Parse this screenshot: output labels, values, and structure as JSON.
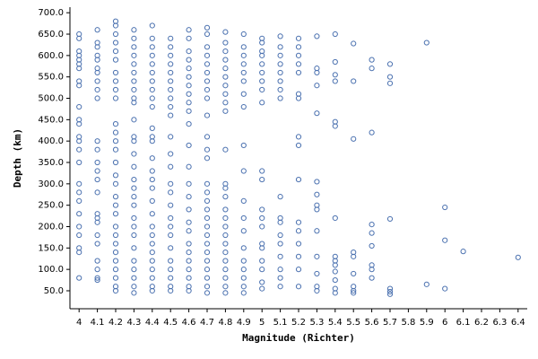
{
  "chart_data": {
    "type": "scatter",
    "x_label": "Magnitude (Richter)",
    "y_label": "Depth (km)",
    "color": "#4c72b0",
    "xlim": [
      3.95,
      6.45
    ],
    "ylim": [
      8,
      713
    ],
    "xticks": [
      4,
      4.1,
      4.2,
      4.3,
      4.4,
      4.5,
      4.6,
      4.7,
      4.8,
      4.9,
      5,
      5.1,
      5.2,
      5.3,
      5.4,
      5.5,
      5.6,
      5.7,
      5.8,
      5.9,
      6,
      6.1,
      6.2,
      6.3,
      6.4
    ],
    "yticks": [
      {
        "value": 50,
        "label": "50.0"
      },
      {
        "value": 100,
        "label": "100.0"
      },
      {
        "value": 150,
        "label": "150.0"
      },
      {
        "value": 200,
        "label": "200.0"
      },
      {
        "value": 250,
        "label": "250.0"
      },
      {
        "value": 300,
        "label": "300.0"
      },
      {
        "value": 350,
        "label": "350.0"
      },
      {
        "value": 400,
        "label": "400.0"
      },
      {
        "value": 450,
        "label": "450.0"
      },
      {
        "value": 500,
        "label": "500.0"
      },
      {
        "value": 550,
        "label": "550.0"
      },
      {
        "value": 600,
        "label": "600.0"
      },
      {
        "value": 650,
        "label": "650.0"
      },
      {
        "value": 700,
        "label": "700.0"
      }
    ],
    "x": [
      4,
      4,
      4,
      4,
      4,
      4,
      4,
      4,
      4,
      4,
      4,
      4,
      4,
      4,
      4,
      4,
      4,
      4,
      4,
      4,
      4,
      4,
      4,
      4,
      4,
      4.1,
      4.1,
      4.1,
      4.1,
      4.1,
      4.1,
      4.1,
      4.1,
      4.1,
      4.1,
      4.1,
      4.1,
      4.1,
      4.1,
      4.1,
      4.1,
      4.1,
      4.1,
      4.1,
      4.1,
      4.1,
      4.1,
      4.1,
      4.1,
      4.1,
      4.2,
      4.2,
      4.2,
      4.2,
      4.2,
      4.2,
      4.2,
      4.2,
      4.2,
      4.2,
      4.2,
      4.2,
      4.2,
      4.2,
      4.2,
      4.2,
      4.2,
      4.2,
      4.2,
      4.2,
      4.2,
      4.2,
      4.2,
      4.2,
      4.2,
      4.2,
      4.2,
      4.2,
      4.2,
      4.3,
      4.3,
      4.3,
      4.3,
      4.3,
      4.3,
      4.3,
      4.3,
      4.3,
      4.3,
      4.3,
      4.3,
      4.3,
      4.3,
      4.3,
      4.3,
      4.3,
      4.3,
      4.3,
      4.3,
      4.3,
      4.3,
      4.3,
      4.3,
      4.3,
      4.3,
      4.3,
      4.3,
      4.4,
      4.4,
      4.4,
      4.4,
      4.4,
      4.4,
      4.4,
      4.4,
      4.4,
      4.4,
      4.4,
      4.4,
      4.4,
      4.4,
      4.4,
      4.4,
      4.4,
      4.4,
      4.4,
      4.4,
      4.4,
      4.4,
      4.4,
      4.4,
      4.4,
      4.4,
      4.4,
      4.4,
      4.5,
      4.5,
      4.5,
      4.5,
      4.5,
      4.5,
      4.5,
      4.5,
      4.5,
      4.5,
      4.5,
      4.5,
      4.5,
      4.5,
      4.5,
      4.5,
      4.5,
      4.5,
      4.5,
      4.5,
      4.5,
      4.5,
      4.5,
      4.5,
      4.5,
      4.6,
      4.6,
      4.6,
      4.6,
      4.6,
      4.6,
      4.6,
      4.6,
      4.6,
      4.6,
      4.6,
      4.6,
      4.6,
      4.6,
      4.6,
      4.6,
      4.6,
      4.6,
      4.6,
      4.6,
      4.6,
      4.6,
      4.6,
      4.6,
      4.6,
      4.7,
      4.7,
      4.7,
      4.7,
      4.7,
      4.7,
      4.7,
      4.7,
      4.7,
      4.7,
      4.7,
      4.7,
      4.7,
      4.7,
      4.7,
      4.7,
      4.7,
      4.7,
      4.7,
      4.7,
      4.7,
      4.7,
      4.7,
      4.7,
      4.7,
      4.7,
      4.7,
      4.8,
      4.8,
      4.8,
      4.8,
      4.8,
      4.8,
      4.8,
      4.8,
      4.8,
      4.8,
      4.8,
      4.8,
      4.8,
      4.8,
      4.8,
      4.8,
      4.8,
      4.8,
      4.8,
      4.8,
      4.8,
      4.8,
      4.8,
      4.8,
      4.8,
      4.9,
      4.9,
      4.9,
      4.9,
      4.9,
      4.9,
      4.9,
      4.9,
      4.9,
      4.9,
      4.9,
      4.9,
      4.9,
      4.9,
      4.9,
      4.9,
      4.9,
      4.9,
      4.9,
      5,
      5,
      5,
      5,
      5,
      5,
      5,
      5,
      5,
      5,
      5,
      5,
      5,
      5,
      5,
      5,
      5,
      5,
      5,
      5,
      5.1,
      5.1,
      5.1,
      5.1,
      5.1,
      5.1,
      5.1,
      5.1,
      5.1,
      5.1,
      5.1,
      5.1,
      5.1,
      5.1,
      5.1,
      5.1,
      5.1,
      5.2,
      5.2,
      5.2,
      5.2,
      5.2,
      5.2,
      5.2,
      5.2,
      5.2,
      5.2,
      5.2,
      5.2,
      5.2,
      5.2,
      5.2,
      5.2,
      5.3,
      5.3,
      5.3,
      5.3,
      5.3,
      5.3,
      5.3,
      5.3,
      5.3,
      5.3,
      5.3,
      5.3,
      5.3,
      5.3,
      5.4,
      5.4,
      5.4,
      5.4,
      5.4,
      5.4,
      5.4,
      5.4,
      5.4,
      5.4,
      5.4,
      5.4,
      5.4,
      5.4,
      5.5,
      5.5,
      5.5,
      5.5,
      5.5,
      5.5,
      5.5,
      5.5,
      5.5,
      5.6,
      5.6,
      5.6,
      5.6,
      5.6,
      5.6,
      5.6,
      5.6,
      5.6,
      5.7,
      5.7,
      5.7,
      5.7,
      5.7,
      5.7,
      5.7,
      5.9,
      5.9,
      6,
      6,
      6,
      6.1,
      6.4
    ],
    "values": [
      650,
      640,
      610,
      600,
      590,
      580,
      570,
      540,
      530,
      480,
      450,
      440,
      410,
      400,
      380,
      350,
      300,
      280,
      260,
      230,
      200,
      180,
      150,
      140,
      80,
      660,
      630,
      620,
      600,
      590,
      570,
      560,
      540,
      520,
      500,
      400,
      380,
      350,
      330,
      310,
      280,
      230,
      220,
      210,
      180,
      160,
      120,
      100,
      80,
      75,
      680,
      670,
      650,
      630,
      610,
      590,
      560,
      540,
      520,
      500,
      440,
      420,
      400,
      380,
      350,
      320,
      300,
      270,
      250,
      230,
      200,
      180,
      160,
      140,
      120,
      100,
      80,
      60,
      50,
      660,
      640,
      620,
      600,
      580,
      560,
      540,
      520,
      500,
      490,
      450,
      410,
      400,
      370,
      340,
      310,
      290,
      270,
      250,
      220,
      200,
      180,
      150,
      120,
      100,
      80,
      60,
      45,
      670,
      640,
      620,
      600,
      580,
      560,
      540,
      520,
      500,
      480,
      430,
      410,
      400,
      360,
      330,
      310,
      290,
      260,
      230,
      200,
      180,
      160,
      140,
      120,
      100,
      80,
      60,
      50,
      640,
      620,
      600,
      580,
      560,
      540,
      520,
      500,
      480,
      460,
      410,
      370,
      340,
      300,
      280,
      250,
      220,
      200,
      180,
      150,
      120,
      100,
      80,
      60,
      50,
      660,
      640,
      610,
      590,
      570,
      550,
      530,
      510,
      490,
      470,
      440,
      390,
      340,
      300,
      270,
      240,
      210,
      190,
      160,
      140,
      120,
      100,
      80,
      60,
      50,
      665,
      650,
      620,
      600,
      580,
      560,
      540,
      520,
      500,
      460,
      410,
      380,
      360,
      300,
      280,
      260,
      240,
      220,
      200,
      180,
      160,
      140,
      120,
      100,
      80,
      60,
      45,
      655,
      630,
      610,
      590,
      570,
      550,
      530,
      510,
      490,
      470,
      380,
      300,
      290,
      270,
      240,
      220,
      200,
      180,
      160,
      140,
      120,
      100,
      80,
      60,
      45,
      650,
      620,
      600,
      580,
      560,
      540,
      510,
      480,
      390,
      330,
      260,
      220,
      190,
      150,
      120,
      100,
      80,
      60,
      45,
      640,
      630,
      610,
      600,
      580,
      560,
      540,
      520,
      490,
      330,
      310,
      240,
      220,
      200,
      160,
      150,
      120,
      100,
      70,
      55,
      645,
      620,
      600,
      580,
      560,
      540,
      520,
      500,
      270,
      220,
      210,
      180,
      160,
      130,
      100,
      80,
      60,
      640,
      620,
      600,
      580,
      560,
      510,
      500,
      410,
      390,
      310,
      210,
      190,
      160,
      130,
      100,
      60,
      645,
      570,
      560,
      530,
      465,
      305,
      275,
      250,
      240,
      190,
      130,
      90,
      60,
      50,
      650,
      585,
      555,
      540,
      445,
      435,
      220,
      130,
      120,
      110,
      95,
      75,
      55,
      45,
      628,
      540,
      405,
      140,
      130,
      90,
      60,
      50,
      45,
      590,
      570,
      420,
      205,
      185,
      155,
      110,
      100,
      80,
      580,
      550,
      535,
      218,
      55,
      48,
      42,
      630,
      65,
      245,
      168,
      55,
      142,
      128
    ]
  }
}
